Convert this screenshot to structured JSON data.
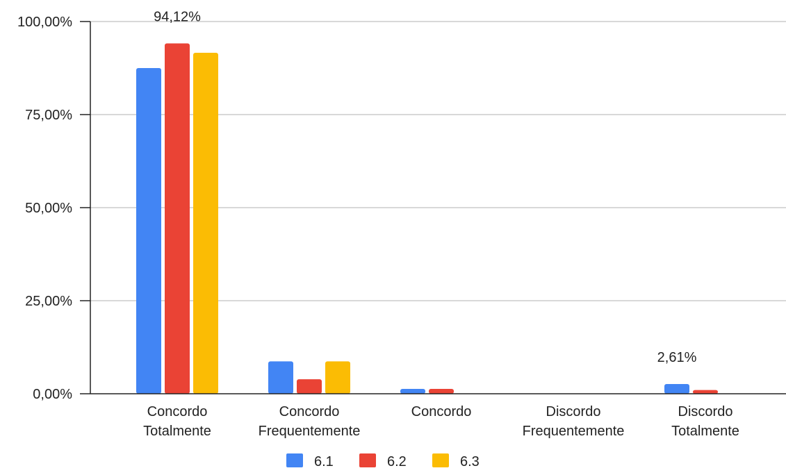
{
  "chart_data": {
    "type": "bar",
    "categories": [
      [
        "Concordo",
        "Totalmente"
      ],
      [
        "Concordo",
        "Frequentemente"
      ],
      [
        "Concordo"
      ],
      [
        "Discordo",
        "Frequentemente"
      ],
      [
        "Discordo",
        "Totalmente"
      ]
    ],
    "series": [
      {
        "name": "6.1",
        "color": "#4285F4",
        "values": [
          87.5,
          8.7,
          1.3,
          0,
          2.61
        ]
      },
      {
        "name": "6.2",
        "color": "#EA4335",
        "values": [
          94.12,
          3.9,
          1.3,
          0,
          1.0
        ]
      },
      {
        "name": "6.3",
        "color": "#FBBC04",
        "values": [
          91.6,
          8.7,
          0,
          0,
          0
        ]
      }
    ],
    "ylim": [
      0,
      100
    ],
    "yticks": [
      0,
      25,
      50,
      75,
      100
    ],
    "ytick_labels": [
      "0,00%",
      "25,00%",
      "50,00%",
      "75,00%",
      "100,00%"
    ],
    "data_labels": [
      {
        "series": 1,
        "category": 0,
        "text": "94,12%"
      },
      {
        "series": 0,
        "category": 4,
        "text": "2,61%"
      }
    ],
    "grid": true,
    "legend_position": "bottom",
    "title": "",
    "xlabel": "",
    "ylabel": ""
  }
}
